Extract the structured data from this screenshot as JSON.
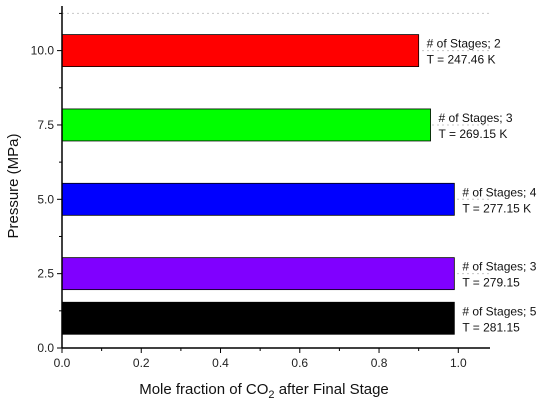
{
  "chart_data": {
    "type": "bar",
    "orientation": "horizontal",
    "title": "",
    "xlabel": "Mole fraction of CO",
    "xlabel_subscript": "2",
    "xlabel_suffix": " after Final Stage",
    "ylabel": "Pressure (MPa)",
    "xlim": [
      0,
      1.08
    ],
    "ylim": [
      0,
      11.5
    ],
    "x_ticks": [
      "0.0",
      "0.2",
      "0.4",
      "0.6",
      "0.8",
      "1.0"
    ],
    "y_ticks": [
      "0.0",
      "2.5",
      "5.0",
      "7.5",
      "10.0"
    ],
    "grid": "horizontal-dotted",
    "bars": [
      {
        "y": 10.0,
        "value": 0.9,
        "color": "#ff0000",
        "label_line1": "# of Stages; 2",
        "label_line2": "T = 247.46 K"
      },
      {
        "y": 7.5,
        "value": 0.93,
        "color": "#00ff00",
        "label_line1": "# of Stages; 3",
        "label_line2": "T = 269.15 K"
      },
      {
        "y": 5.0,
        "value": 0.99,
        "color": "#0000ff",
        "label_line1": "# of Stages; 4",
        "label_line2": "T = 277.15 K"
      },
      {
        "y": 2.5,
        "value": 0.99,
        "color": "#8000ff",
        "label_line1": "# of Stages; 3",
        "label_line2": "T = 279.15"
      },
      {
        "y": 1.0,
        "value": 0.99,
        "color": "#000000",
        "label_line1": "# of Stages; 5",
        "label_line2": "T = 281.15"
      }
    ]
  }
}
